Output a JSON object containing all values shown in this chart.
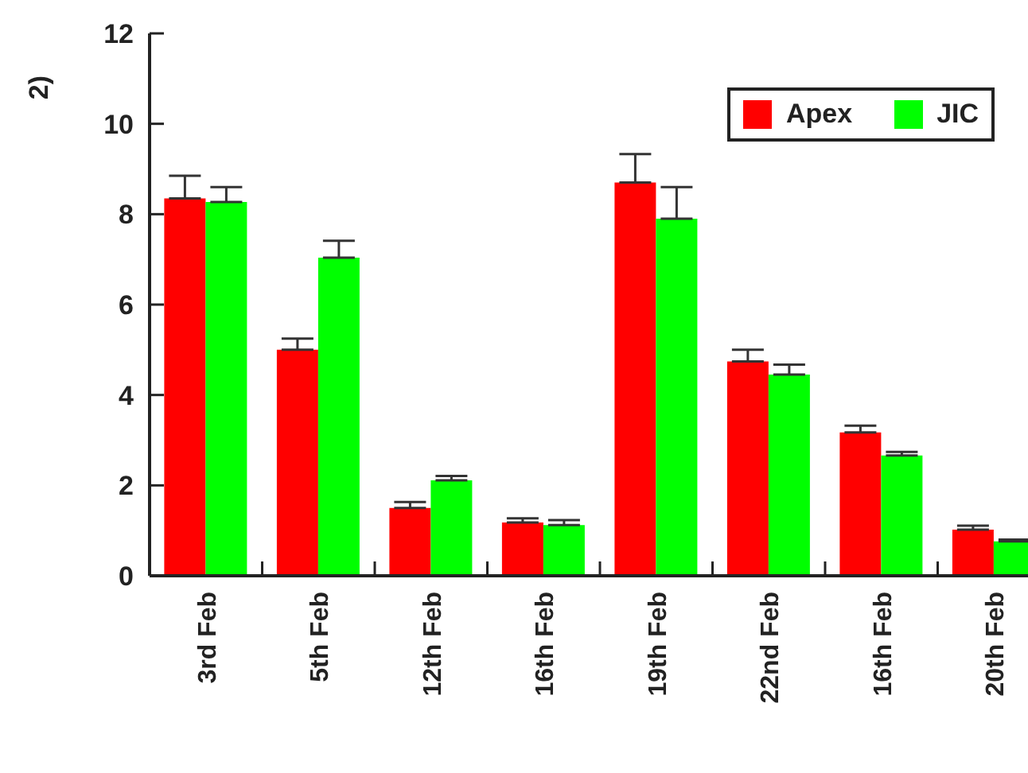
{
  "chart_data": {
    "type": "bar",
    "ylabel": "2)",
    "categories": [
      "3rd Feb",
      "5th Feb",
      "12th Feb",
      "16th Feb",
      "19th Feb",
      "22nd Feb",
      "16th Feb",
      "20th Feb"
    ],
    "series": [
      {
        "name": "Apex",
        "color": "#ff0000",
        "values": [
          8.35,
          5.0,
          1.5,
          1.18,
          8.7,
          4.74,
          3.17,
          1.02
        ],
        "errors": [
          [
            8.35,
            8.85
          ],
          [
            5.0,
            5.25
          ],
          [
            1.5,
            1.63
          ],
          [
            1.18,
            1.27
          ],
          [
            8.7,
            9.33
          ],
          [
            4.74,
            5.0
          ],
          [
            3.17,
            3.32
          ],
          [
            1.02,
            1.11
          ]
        ]
      },
      {
        "name": "JIC",
        "color": "#00ff00",
        "values": [
          8.27,
          7.04,
          2.11,
          1.12,
          7.9,
          4.45,
          2.66,
          0.76
        ],
        "errors": [
          [
            8.27,
            8.6
          ],
          [
            7.04,
            7.41
          ],
          [
            2.11,
            2.21
          ],
          [
            1.12,
            1.23
          ],
          [
            7.9,
            8.6
          ],
          [
            4.45,
            4.67
          ],
          [
            2.66,
            2.74
          ],
          [
            0.76,
            0.8
          ]
        ]
      }
    ],
    "ylim": [
      0,
      12
    ],
    "yticks": [
      0,
      2,
      4,
      6,
      8,
      10,
      12
    ],
    "grid": false,
    "legend": "top right"
  }
}
